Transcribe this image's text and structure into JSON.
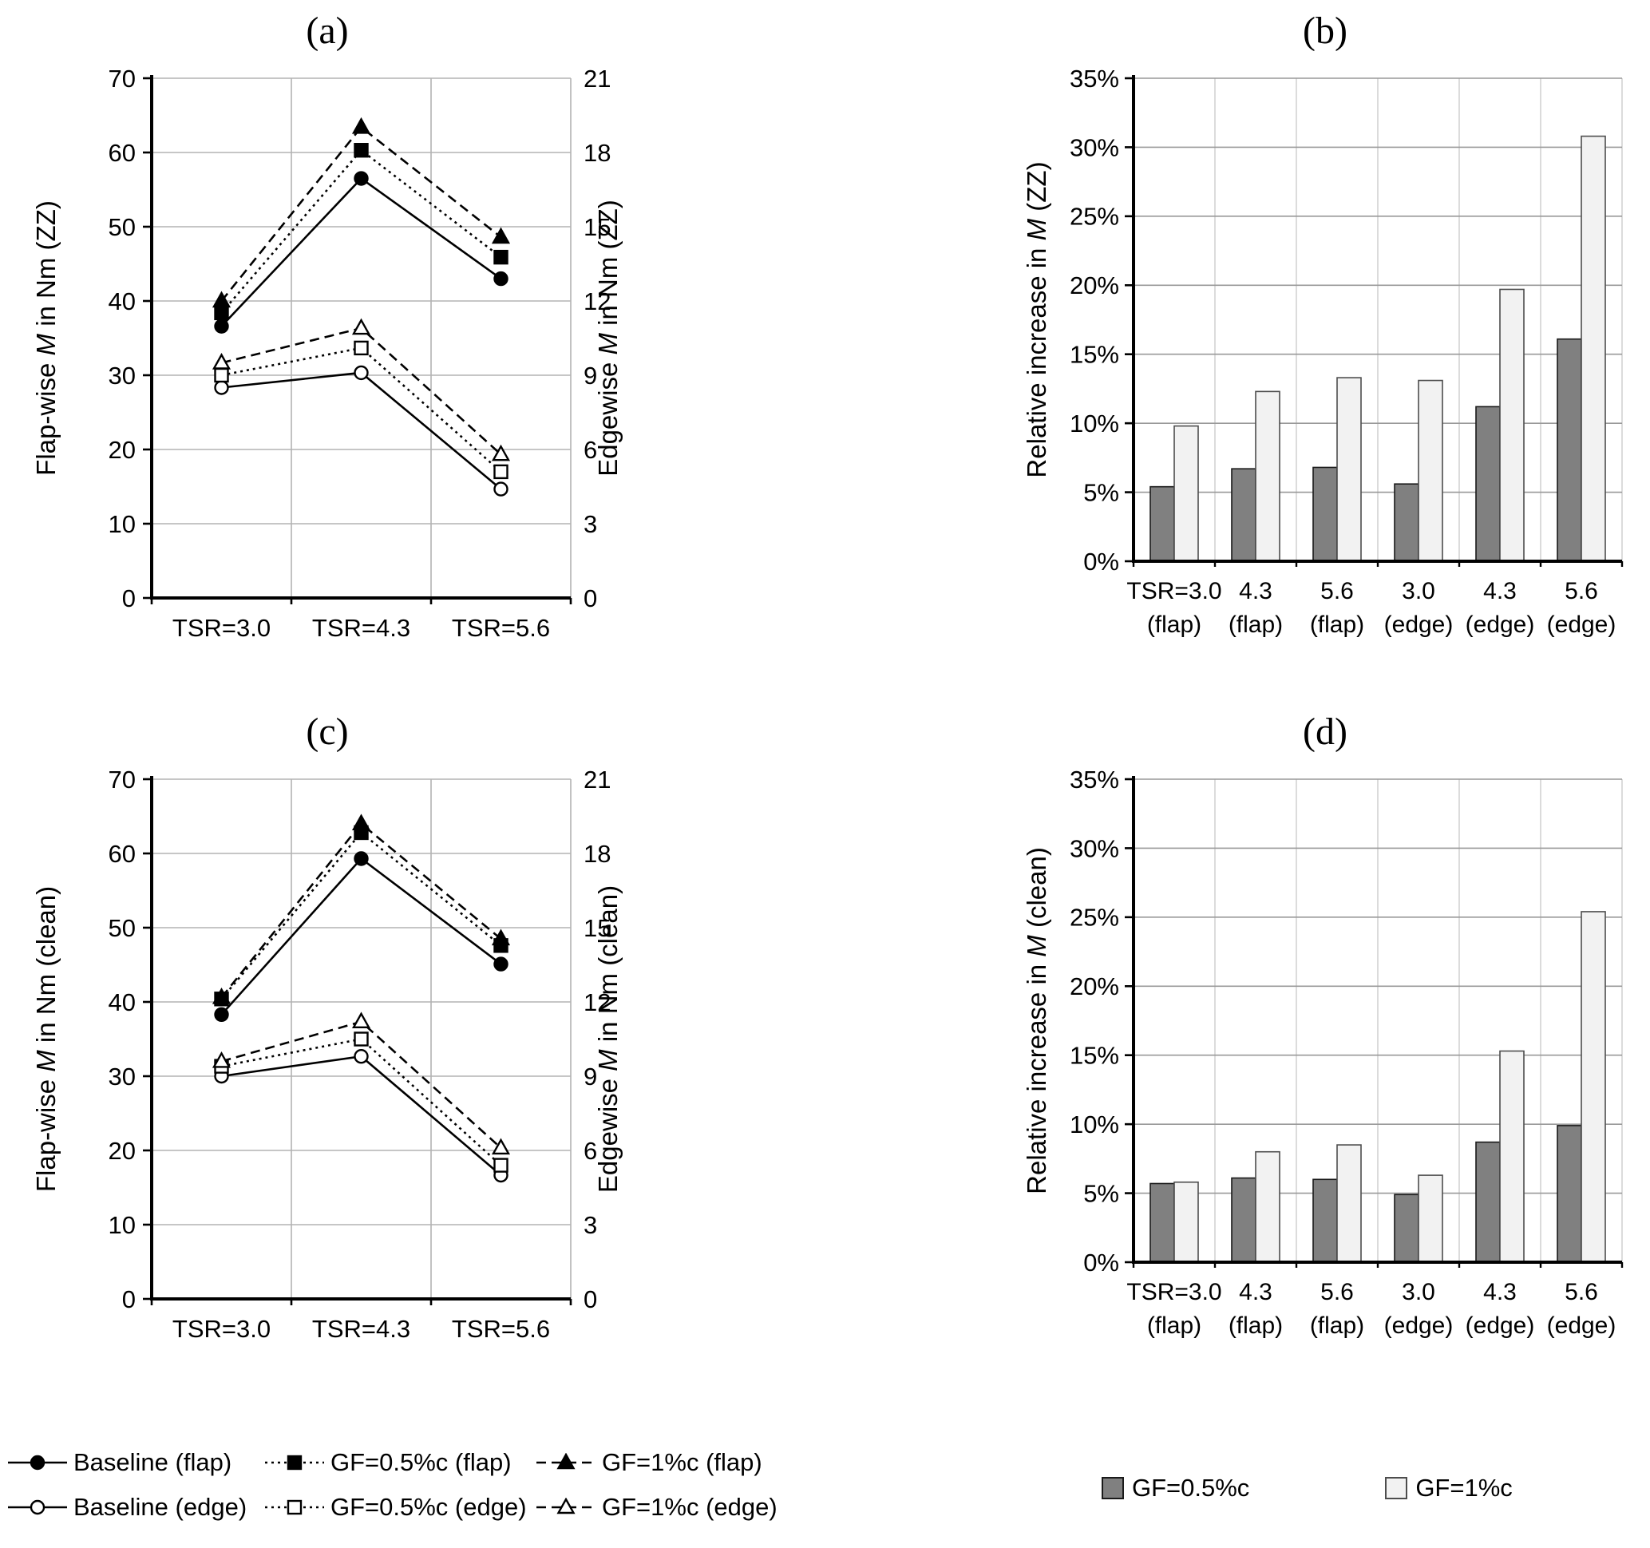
{
  "colors": {
    "axis": "#000000",
    "grid_line_chart": "#b3b3b3",
    "bar_grid_h": "#999999",
    "bar_grid_v": "#cccccc",
    "bar_dark": "#808080",
    "bar_light": "#f2f2f2",
    "bar_dark_stroke": "#1a1a1a",
    "bar_light_stroke": "#4d4d4d",
    "series_stroke": "#000000"
  },
  "chart_data": [
    {
      "id": "a",
      "type": "line",
      "title": "(a)",
      "categories": [
        "TSR=3.0",
        "TSR=4.3",
        "TSR=5.6"
      ],
      "left_axis": {
        "label": "Flap-wise M in Nm (ZZ)",
        "min": 0,
        "max": 70,
        "step": 10
      },
      "right_axis": {
        "label": "Edgewise M in Nm (ZZ)",
        "min": 0,
        "max": 21,
        "step": 3
      },
      "series": [
        {
          "name": "Baseline (flap)",
          "axis": "left",
          "line": "solid",
          "marker": "circle",
          "fill": "filled",
          "values": [
            36.6,
            56.5,
            43.0
          ]
        },
        {
          "name": "GF=0.5%c (flap)",
          "axis": "left",
          "line": "dotted",
          "marker": "square",
          "fill": "filled",
          "values": [
            38.4,
            60.3,
            45.9
          ]
        },
        {
          "name": "GF=1%c (flap)",
          "axis": "left",
          "line": "dashed",
          "marker": "triangle",
          "fill": "filled",
          "values": [
            40.0,
            63.4,
            48.6
          ]
        },
        {
          "name": "Baseline (edge)",
          "axis": "right",
          "line": "solid",
          "marker": "circle",
          "fill": "open",
          "values": [
            8.5,
            9.1,
            4.4
          ]
        },
        {
          "name": "GF=0.5%c (edge)",
          "axis": "right",
          "line": "dotted",
          "marker": "square",
          "fill": "open",
          "values": [
            9.0,
            10.1,
            5.1
          ]
        },
        {
          "name": "GF=1%c (edge)",
          "axis": "right",
          "line": "dashed",
          "marker": "triangle",
          "fill": "open",
          "values": [
            9.5,
            10.9,
            5.8
          ]
        }
      ]
    },
    {
      "id": "b",
      "type": "bar",
      "title": "(b)",
      "ylabel": "Relative increase in M (ZZ)",
      "ylim": [
        0,
        35
      ],
      "ystep": 5,
      "unit": "%",
      "categories_line1": [
        "TSR=3.0",
        "4.3",
        "5.6",
        "3.0",
        "4.3",
        "5.6"
      ],
      "categories_line2": [
        "(flap)",
        "(flap)",
        "(flap)",
        "(edge)",
        "(edge)",
        "(edge)"
      ],
      "series": [
        {
          "name": "GF=0.5%c",
          "swatch": "dark",
          "values": [
            5.4,
            6.7,
            6.8,
            5.6,
            11.2,
            16.1
          ]
        },
        {
          "name": "GF=1%c",
          "swatch": "light",
          "values": [
            9.8,
            12.3,
            13.3,
            13.1,
            19.7,
            30.8
          ]
        }
      ]
    },
    {
      "id": "c",
      "type": "line",
      "title": "(c)",
      "categories": [
        "TSR=3.0",
        "TSR=4.3",
        "TSR=5.6"
      ],
      "left_axis": {
        "label": "Flap-wise M in Nm (clean)",
        "min": 0,
        "max": 70,
        "step": 10
      },
      "right_axis": {
        "label": "Edgewise M in Nm (clean)",
        "min": 0,
        "max": 21,
        "step": 3
      },
      "series": [
        {
          "name": "Baseline (flap)",
          "axis": "left",
          "line": "solid",
          "marker": "circle",
          "fill": "filled",
          "values": [
            38.3,
            59.3,
            45.1
          ]
        },
        {
          "name": "GF=0.5%c (flap)",
          "axis": "left",
          "line": "dotted",
          "marker": "square",
          "fill": "filled",
          "values": [
            40.4,
            62.8,
            47.6
          ]
        },
        {
          "name": "GF=1%c (flap)",
          "axis": "left",
          "line": "dashed",
          "marker": "triangle",
          "fill": "filled",
          "values": [
            40.6,
            64.0,
            48.5
          ]
        },
        {
          "name": "Baseline (edge)",
          "axis": "right",
          "line": "solid",
          "marker": "circle",
          "fill": "open",
          "values": [
            9.0,
            9.8,
            5.0
          ]
        },
        {
          "name": "GF=0.5%c (edge)",
          "axis": "right",
          "line": "dotted",
          "marker": "square",
          "fill": "open",
          "values": [
            9.4,
            10.5,
            5.4
          ]
        },
        {
          "name": "GF=1%c (edge)",
          "axis": "right",
          "line": "dashed",
          "marker": "triangle",
          "fill": "open",
          "values": [
            9.6,
            11.2,
            6.1
          ]
        }
      ]
    },
    {
      "id": "d",
      "type": "bar",
      "title": "(d)",
      "ylabel": "Relative increase in M (clean)",
      "ylim": [
        0,
        35
      ],
      "ystep": 5,
      "unit": "%",
      "categories_line1": [
        "TSR=3.0",
        "4.3",
        "5.6",
        "3.0",
        "4.3",
        "5.6"
      ],
      "categories_line2": [
        "(flap)",
        "(flap)",
        "(flap)",
        "(edge)",
        "(edge)",
        "(edge)"
      ],
      "series": [
        {
          "name": "GF=0.5%c",
          "swatch": "dark",
          "values": [
            5.7,
            6.1,
            6.0,
            4.9,
            8.7,
            9.9
          ]
        },
        {
          "name": "GF=1%c",
          "swatch": "light",
          "values": [
            5.8,
            8.0,
            8.5,
            6.3,
            15.3,
            25.4
          ]
        }
      ]
    }
  ],
  "legends": {
    "line_series": {
      "rows": [
        [
          {
            "label": "Baseline (flap)",
            "line": "solid",
            "marker": "circle",
            "fill": "filled"
          },
          {
            "label": "GF=0.5%c (flap)",
            "line": "dotted",
            "marker": "square",
            "fill": "filled"
          },
          {
            "label": "GF=1%c (flap)",
            "line": "dashed",
            "marker": "triangle",
            "fill": "filled"
          }
        ],
        [
          {
            "label": "Baseline (edge)",
            "line": "solid",
            "marker": "circle",
            "fill": "open"
          },
          {
            "label": "GF=0.5%c (edge)",
            "line": "dotted",
            "marker": "square",
            "fill": "open"
          },
          {
            "label": "GF=1%c (edge)",
            "line": "dashed",
            "marker": "triangle",
            "fill": "open"
          }
        ]
      ]
    },
    "bar_series": {
      "items": [
        {
          "label": "GF=0.5%c",
          "swatch": "dark"
        },
        {
          "label": "GF=1%c",
          "swatch": "light"
        }
      ]
    }
  }
}
